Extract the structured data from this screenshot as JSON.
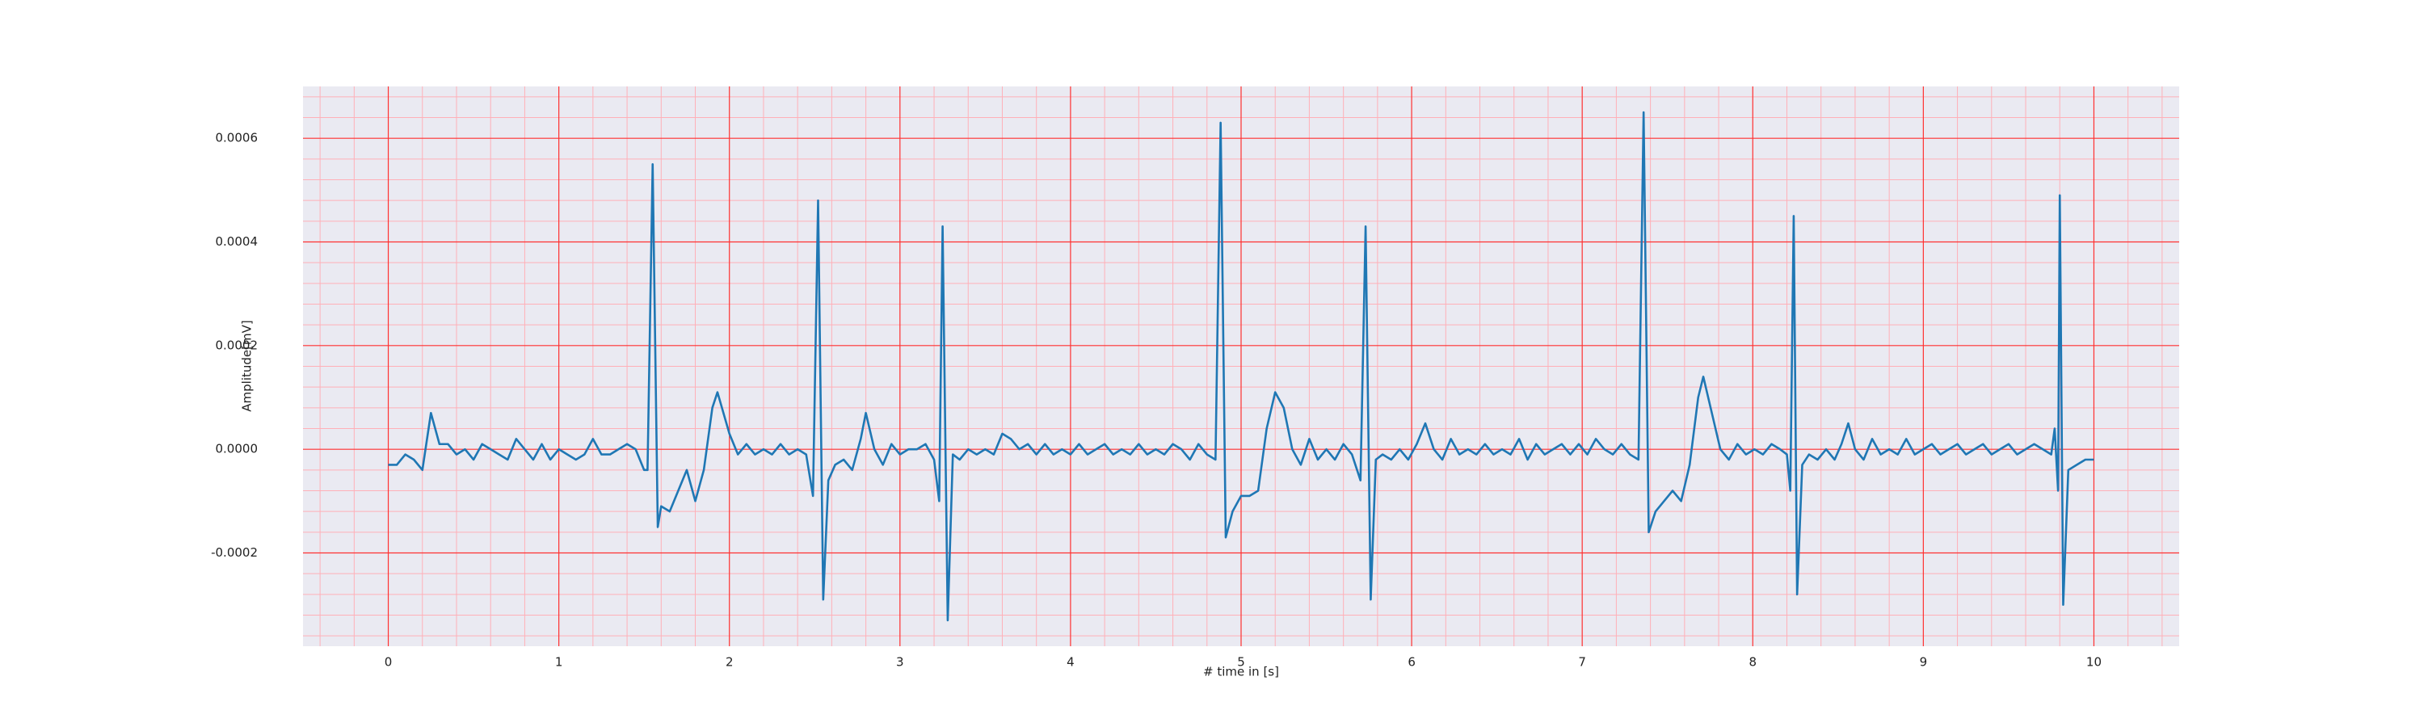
{
  "chart_data": {
    "type": "line",
    "xlabel": "# time in [s]",
    "ylabel": "Amplitude[mV]",
    "color": "#1f77b4",
    "background": "#eaeaf2",
    "grid": true,
    "grid_color": "#ff3030",
    "minor_grid": true,
    "minor_grid_color": "#ffb0b8",
    "xlim": [
      -0.5,
      10.5
    ],
    "xticks": [
      0,
      1,
      2,
      3,
      4,
      5,
      6,
      7,
      8,
      9,
      10
    ],
    "ylim": [
      -0.00038,
      0.0007
    ],
    "yticks": [
      {
        "value": -0.0002,
        "label": "-0.0002"
      },
      {
        "value": 0,
        "label": "0.0000"
      },
      {
        "value": 0.0002,
        "label": "0.0002"
      },
      {
        "value": 0.0004,
        "label": "0.0004"
      },
      {
        "value": 0.0006,
        "label": "0.0006"
      }
    ],
    "x": [
      0,
      0.05,
      0.1,
      0.15,
      0.2,
      0.25,
      0.3,
      0.35,
      0.4,
      0.45,
      0.5,
      0.55,
      0.6,
      0.65,
      0.7,
      0.75,
      0.8,
      0.85,
      0.9,
      0.95,
      1.0,
      1.05,
      1.1,
      1.15,
      1.2,
      1.25,
      1.3,
      1.35,
      1.4,
      1.45,
      1.5,
      1.52,
      1.55,
      1.58,
      1.6,
      1.65,
      1.7,
      1.75,
      1.8,
      1.85,
      1.9,
      1.93,
      2.0,
      2.05,
      2.1,
      2.15,
      2.2,
      2.25,
      2.3,
      2.35,
      2.4,
      2.45,
      2.49,
      2.52,
      2.55,
      2.58,
      2.62,
      2.67,
      2.72,
      2.77,
      2.8,
      2.85,
      2.9,
      2.95,
      3.0,
      3.05,
      3.1,
      3.15,
      3.2,
      3.23,
      3.25,
      3.28,
      3.31,
      3.35,
      3.4,
      3.45,
      3.5,
      3.55,
      3.6,
      3.65,
      3.7,
      3.75,
      3.8,
      3.85,
      3.9,
      3.95,
      4.0,
      4.05,
      4.1,
      4.15,
      4.2,
      4.25,
      4.3,
      4.35,
      4.4,
      4.45,
      4.5,
      4.55,
      4.6,
      4.65,
      4.7,
      4.75,
      4.8,
      4.85,
      4.88,
      4.91,
      4.95,
      5.0,
      5.05,
      5.1,
      5.15,
      5.2,
      5.25,
      5.3,
      5.35,
      5.4,
      5.45,
      5.5,
      5.55,
      5.6,
      5.65,
      5.7,
      5.73,
      5.76,
      5.79,
      5.83,
      5.88,
      5.93,
      5.98,
      6.03,
      6.08,
      6.13,
      6.18,
      6.23,
      6.28,
      6.33,
      6.38,
      6.43,
      6.48,
      6.53,
      6.58,
      6.63,
      6.68,
      6.73,
      6.78,
      6.83,
      6.88,
      6.93,
      6.98,
      7.03,
      7.08,
      7.13,
      7.18,
      7.23,
      7.28,
      7.33,
      7.36,
      7.39,
      7.43,
      7.48,
      7.53,
      7.58,
      7.63,
      7.68,
      7.71,
      7.76,
      7.81,
      7.86,
      7.91,
      7.96,
      8.01,
      8.06,
      8.11,
      8.16,
      8.2,
      8.22,
      8.24,
      8.26,
      8.29,
      8.33,
      8.38,
      8.43,
      8.48,
      8.52,
      8.56,
      8.6,
      8.65,
      8.7,
      8.75,
      8.8,
      8.85,
      8.9,
      8.95,
      9.0,
      9.05,
      9.1,
      9.15,
      9.2,
      9.25,
      9.3,
      9.35,
      9.4,
      9.45,
      9.5,
      9.55,
      9.6,
      9.65,
      9.7,
      9.75,
      9.77,
      9.79,
      9.8,
      9.82,
      9.85,
      9.9,
      9.95,
      10.0
    ],
    "values": [
      -3e-05,
      -3e-05,
      -1e-05,
      -2e-05,
      -4e-05,
      7e-05,
      1e-05,
      1e-05,
      -1e-05,
      0,
      -2e-05,
      1e-05,
      0,
      -1e-05,
      -2e-05,
      2e-05,
      0,
      -2e-05,
      1e-05,
      -2e-05,
      0,
      -1e-05,
      -2e-05,
      -1e-05,
      2e-05,
      -1e-05,
      -1e-05,
      0,
      1e-05,
      0,
      -4e-05,
      -4e-05,
      0.00055,
      -0.00015,
      -0.00011,
      -0.00012,
      -8e-05,
      -4e-05,
      -0.0001,
      -4e-05,
      8e-05,
      0.00011,
      3e-05,
      -1e-05,
      1e-05,
      -1e-05,
      0,
      -1e-05,
      1e-05,
      -1e-05,
      0,
      -1e-05,
      -9e-05,
      0.00048,
      -0.00029,
      -6e-05,
      -3e-05,
      -2e-05,
      -4e-05,
      2e-05,
      7e-05,
      0,
      -3e-05,
      1e-05,
      -1e-05,
      0,
      0,
      1e-05,
      -2e-05,
      -0.0001,
      0.00043,
      -0.00033,
      -1e-05,
      -2e-05,
      0,
      -1e-05,
      0,
      -1e-05,
      3e-05,
      2e-05,
      0,
      1e-05,
      -1e-05,
      1e-05,
      -1e-05,
      0,
      -1e-05,
      1e-05,
      -1e-05,
      0,
      1e-05,
      -1e-05,
      0,
      -1e-05,
      1e-05,
      -1e-05,
      0,
      -1e-05,
      1e-05,
      0,
      -2e-05,
      1e-05,
      -1e-05,
      -2e-05,
      0.00063,
      -0.00017,
      -0.00012,
      -9e-05,
      -9e-05,
      -8e-05,
      4e-05,
      0.00011,
      8e-05,
      0,
      -3e-05,
      2e-05,
      -2e-05,
      0,
      -2e-05,
      1e-05,
      -1e-05,
      -6e-05,
      0.00043,
      -0.00029,
      -2e-05,
      -1e-05,
      -2e-05,
      0,
      -2e-05,
      1e-05,
      5e-05,
      0,
      -2e-05,
      2e-05,
      -1e-05,
      0,
      -1e-05,
      1e-05,
      -1e-05,
      0,
      -1e-05,
      2e-05,
      -2e-05,
      1e-05,
      -1e-05,
      0,
      1e-05,
      -1e-05,
      1e-05,
      -1e-05,
      2e-05,
      0,
      -1e-05,
      1e-05,
      -1e-05,
      -2e-05,
      0.00065,
      -0.00016,
      -0.00012,
      -0.0001,
      -8e-05,
      -0.0001,
      -3e-05,
      0.0001,
      0.00014,
      7e-05,
      0,
      -2e-05,
      1e-05,
      -1e-05,
      0,
      -1e-05,
      1e-05,
      0,
      -1e-05,
      -8e-05,
      0.00045,
      -0.00028,
      -3e-05,
      -1e-05,
      -2e-05,
      0,
      -2e-05,
      1e-05,
      5e-05,
      0,
      -2e-05,
      2e-05,
      -1e-05,
      0,
      -1e-05,
      2e-05,
      -1e-05,
      0,
      1e-05,
      -1e-05,
      0,
      1e-05,
      -1e-05,
      0,
      1e-05,
      -1e-05,
      0,
      1e-05,
      -1e-05,
      0,
      1e-05,
      0,
      -1e-05,
      4e-05,
      -8e-05,
      0.00049,
      -0.0003,
      -4e-05,
      -3e-05,
      -2e-05,
      -2e-05
    ]
  }
}
